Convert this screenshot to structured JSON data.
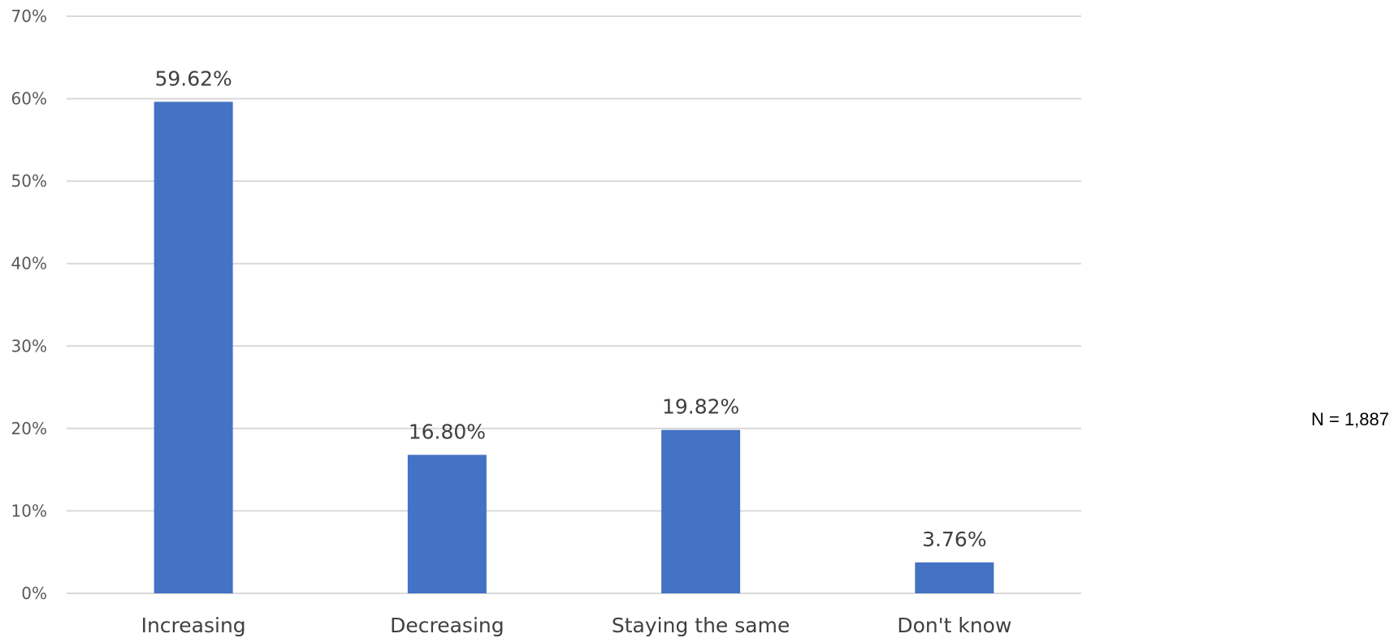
{
  "chart_data": {
    "type": "bar",
    "categories": [
      "Increasing",
      "Decreasing",
      "Staying the same",
      "Don't know"
    ],
    "values": [
      59.62,
      16.8,
      19.82,
      3.76
    ],
    "data_labels": [
      "59.62%",
      "16.80%",
      "19.82%",
      "3.76%"
    ],
    "y_ticks": [
      0,
      10,
      20,
      30,
      40,
      50,
      60,
      70
    ],
    "y_tick_labels": [
      "0%",
      "10%",
      "20%",
      "30%",
      "40%",
      "50%",
      "60%",
      "70%"
    ],
    "ylim": [
      0,
      70
    ],
    "grid": true,
    "legend": false,
    "bar_color": "#4472C4",
    "title": "",
    "xlabel": "",
    "ylabel": ""
  },
  "note": {
    "sample_size": "N = 1,887"
  }
}
